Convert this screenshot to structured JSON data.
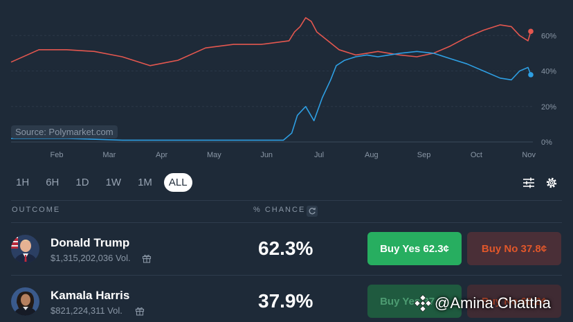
{
  "chart_data": {
    "type": "line",
    "source_label": "Source: Polymarket.com",
    "x_tick_labels": [
      "Feb",
      "Mar",
      "Apr",
      "May",
      "Jun",
      "Jul",
      "Aug",
      "Sep",
      "Oct",
      "Nov"
    ],
    "y_tick_labels": [
      "0%",
      "20%",
      "40%",
      "60%"
    ],
    "ylim": [
      0,
      80
    ],
    "grid": true,
    "series": [
      {
        "key": "trump",
        "color": "#e4574f",
        "x": [
          0,
          0.5,
          1,
          1.5,
          2,
          2.5,
          3,
          3.5,
          4,
          4.5,
          5,
          5.1,
          5.2,
          5.3,
          5.4,
          5.5,
          5.7,
          5.9,
          6,
          6.2,
          6.4,
          6.6,
          6.8,
          7,
          7.3,
          7.6,
          7.9,
          8.2,
          8.5,
          8.8,
          9,
          9.15,
          9.3,
          9.35
        ],
        "values": [
          45,
          52,
          52,
          51,
          48,
          43,
          46,
          53,
          55,
          55,
          57,
          62,
          65,
          70,
          68,
          62,
          57,
          52,
          51,
          49,
          50,
          51,
          50,
          49,
          48,
          50,
          54,
          59,
          63,
          66,
          65,
          60,
          57,
          62.3
        ]
      },
      {
        "key": "harris",
        "color": "#2e9fe3",
        "x": [
          0,
          1,
          2,
          3,
          4,
          4.9,
          5.05,
          5.15,
          5.3,
          5.45,
          5.6,
          5.75,
          5.85,
          6,
          6.2,
          6.4,
          6.6,
          6.8,
          7,
          7.3,
          7.6,
          7.9,
          8.2,
          8.5,
          8.8,
          9,
          9.15,
          9.3,
          9.35
        ],
        "values": [
          2,
          2,
          1,
          1,
          1,
          1,
          5,
          15,
          20,
          12,
          25,
          35,
          43,
          46,
          48,
          49,
          48,
          49,
          50,
          51,
          50,
          47,
          44,
          40,
          36,
          35,
          40,
          42,
          37.9
        ]
      }
    ],
    "end_markers": [
      {
        "series": "trump",
        "value": 62.3
      },
      {
        "series": "harris",
        "value": 37.9
      }
    ]
  },
  "timeframes": [
    {
      "label": "1H",
      "active": false
    },
    {
      "label": "6H",
      "active": false
    },
    {
      "label": "1D",
      "active": false
    },
    {
      "label": "1W",
      "active": false
    },
    {
      "label": "1M",
      "active": false
    },
    {
      "label": "ALL",
      "active": true
    }
  ],
  "table": {
    "outcome_header": "OUTCOME",
    "chance_header": "% CHANCE",
    "rows": [
      {
        "name": "Donald Trump",
        "volume": "$1,315,202,036 Vol.",
        "chance": "62.3%",
        "buy_yes": "Buy Yes 62.3¢",
        "buy_no": "Buy No 37.8¢"
      },
      {
        "name": "Kamala Harris",
        "volume": "$821,224,311 Vol.",
        "chance": "37.9%",
        "buy_yes": "Buy Yes 37.9¢",
        "buy_no": "Buy No 62.2¢"
      }
    ]
  },
  "watermark": "@Amina Chattha",
  "colors": {
    "background": "#1e2a38",
    "trump_line": "#e4574f",
    "harris_line": "#2e9fe3",
    "buy_yes": "#27ae60",
    "buy_no_text": "#e2572a"
  },
  "icons": [
    "filter-sliders-icon",
    "gear-icon",
    "refresh-icon",
    "gift-icon",
    "binance-logo-icon"
  ]
}
